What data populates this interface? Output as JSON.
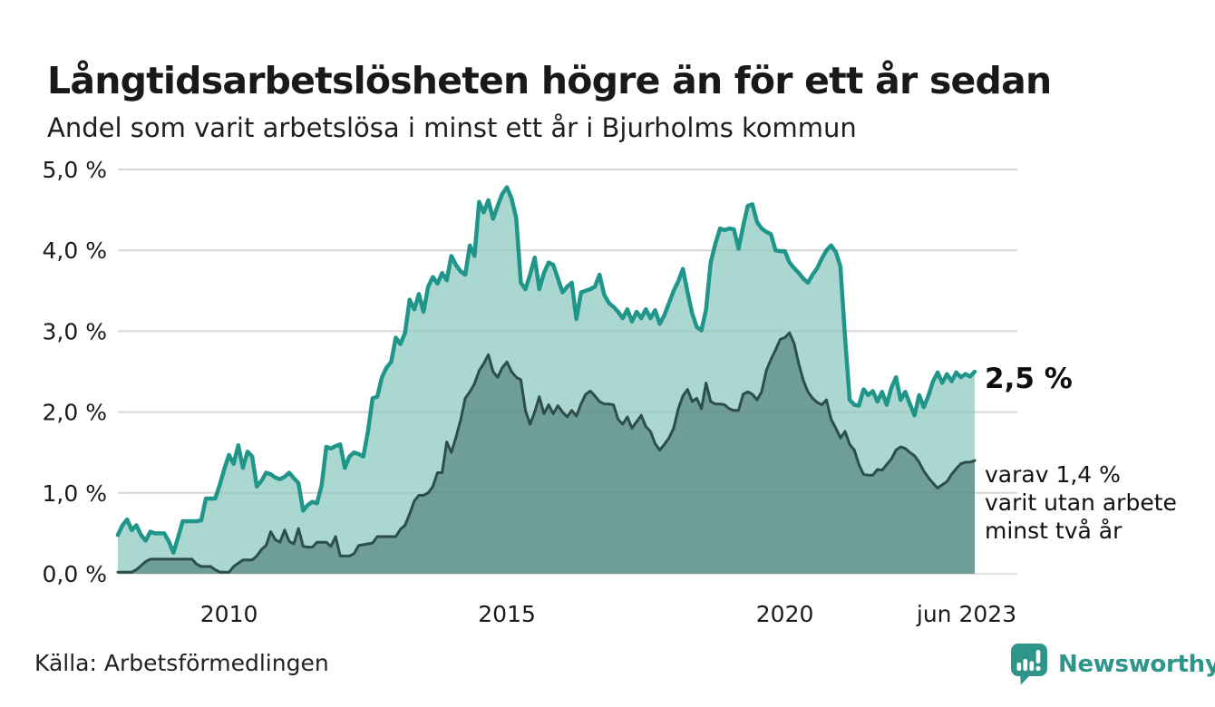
{
  "annotations": {
    "latest_value": "2,5 %",
    "secondary_line1": "varav 1,4 %",
    "secondary_line2": "varit utan arbete",
    "secondary_line3": "minst två år"
  },
  "footer": {
    "source": "Källa: Arbetsförmedlingen",
    "logo_text": "Newsworthy",
    "logo_icon": "bar-chart-speech-bubble-icon"
  },
  "colors": {
    "series1_stroke": "#20968a",
    "series1_fill": "#aad7d0",
    "series2_stroke": "#2d4e4a",
    "series2_fill": "#6f9d97",
    "gridline": "#e2e2e2",
    "logo_teal": "#2e958a",
    "text": "#1a1a1a"
  },
  "chart_data": {
    "type": "area",
    "title": "Långtidsarbetslösheten högre än för ett år sedan",
    "subtitle": "Andel som varit arbetslösa i minst ett år i Bjurholms kommun",
    "unit": "%",
    "frequency": "monthly",
    "x_start": "2008-01",
    "x_end": "2023-06",
    "grid": true,
    "x_axis": {
      "ticks": [
        {
          "label": "2010",
          "month_index": 24
        },
        {
          "label": "2015",
          "month_index": 84
        },
        {
          "label": "2020",
          "month_index": 144
        },
        {
          "label": "jun 2023",
          "month_index": 185
        }
      ]
    },
    "y_axis": {
      "min": 0,
      "max": 5,
      "ticks": [
        {
          "label": "0,0 %",
          "value": 0
        },
        {
          "label": "1,0 %",
          "value": 1
        },
        {
          "label": "2,0 %",
          "value": 2
        },
        {
          "label": "3,0 %",
          "value": 3
        },
        {
          "label": "4,0 %",
          "value": 4
        },
        {
          "label": "5,0 %",
          "value": 5
        }
      ]
    },
    "series": [
      {
        "name": "Andel arbetslösa minst ett år",
        "end_label": "2,5 %",
        "stroke": "#20968a",
        "fill": "#aad7d0",
        "stroke_width": 4.5,
        "values": [
          0.48,
          0.6,
          0.67,
          0.54,
          0.6,
          0.48,
          0.41,
          0.52,
          0.5,
          0.5,
          0.5,
          0.4,
          0.26,
          0.45,
          0.65,
          0.65,
          0.65,
          0.65,
          0.66,
          0.93,
          0.93,
          0.93,
          1.1,
          1.3,
          1.47,
          1.36,
          1.59,
          1.31,
          1.51,
          1.45,
          1.08,
          1.15,
          1.25,
          1.23,
          1.19,
          1.17,
          1.2,
          1.25,
          1.18,
          1.12,
          0.78,
          0.85,
          0.89,
          0.87,
          1.1,
          1.57,
          1.55,
          1.58,
          1.6,
          1.31,
          1.45,
          1.5,
          1.48,
          1.45,
          1.76,
          2.17,
          2.19,
          2.43,
          2.55,
          2.62,
          2.92,
          2.84,
          2.98,
          3.39,
          3.27,
          3.46,
          3.24,
          3.55,
          3.67,
          3.59,
          3.72,
          3.63,
          3.93,
          3.82,
          3.74,
          3.7,
          4.06,
          3.93,
          4.6,
          4.47,
          4.62,
          4.39,
          4.55,
          4.7,
          4.78,
          4.64,
          4.4,
          3.6,
          3.52,
          3.7,
          3.91,
          3.52,
          3.72,
          3.85,
          3.82,
          3.65,
          3.48,
          3.55,
          3.6,
          3.15,
          3.48,
          3.5,
          3.52,
          3.55,
          3.7,
          3.45,
          3.35,
          3.3,
          3.24,
          3.16,
          3.27,
          3.12,
          3.24,
          3.16,
          3.27,
          3.16,
          3.26,
          3.09,
          3.2,
          3.35,
          3.5,
          3.62,
          3.77,
          3.48,
          3.22,
          3.05,
          3.01,
          3.27,
          3.85,
          4.08,
          4.27,
          4.25,
          4.27,
          4.26,
          4.02,
          4.3,
          4.55,
          4.57,
          4.35,
          4.27,
          4.23,
          4.2,
          4.0,
          3.99,
          3.99,
          3.85,
          3.78,
          3.72,
          3.65,
          3.6,
          3.7,
          3.78,
          3.9,
          4.0,
          4.06,
          3.98,
          3.8,
          2.92,
          2.15,
          2.09,
          2.08,
          2.28,
          2.21,
          2.26,
          2.13,
          2.25,
          2.09,
          2.3,
          2.43,
          2.15,
          2.25,
          2.1,
          1.96,
          2.21,
          2.06,
          2.2,
          2.38,
          2.49,
          2.36,
          2.47,
          2.38,
          2.49,
          2.43,
          2.47,
          2.44,
          2.5
        ]
      },
      {
        "name": "varav utan arbete minst två år",
        "end_label": "varav 1,4 % varit utan arbete minst två år",
        "stroke": "#2d4e4a",
        "fill": "#6f9d97",
        "stroke_width": 3,
        "values": [
          0.02,
          0.02,
          0.02,
          0.02,
          0.05,
          0.1,
          0.15,
          0.18,
          0.18,
          0.18,
          0.18,
          0.18,
          0.18,
          0.18,
          0.18,
          0.18,
          0.18,
          0.12,
          0.09,
          0.09,
          0.09,
          0.05,
          0.02,
          0.02,
          0.02,
          0.09,
          0.13,
          0.17,
          0.17,
          0.17,
          0.22,
          0.3,
          0.35,
          0.52,
          0.42,
          0.39,
          0.54,
          0.4,
          0.37,
          0.56,
          0.34,
          0.33,
          0.33,
          0.39,
          0.39,
          0.39,
          0.34,
          0.46,
          0.22,
          0.22,
          0.22,
          0.25,
          0.35,
          0.36,
          0.37,
          0.38,
          0.46,
          0.46,
          0.46,
          0.46,
          0.46,
          0.55,
          0.6,
          0.74,
          0.9,
          0.97,
          0.97,
          1.0,
          1.08,
          1.25,
          1.25,
          1.63,
          1.5,
          1.69,
          1.9,
          2.17,
          2.25,
          2.35,
          2.51,
          2.6,
          2.71,
          2.5,
          2.43,
          2.55,
          2.62,
          2.5,
          2.43,
          2.4,
          2.02,
          1.85,
          2.0,
          2.19,
          1.98,
          2.09,
          1.98,
          2.08,
          2.0,
          1.94,
          2.02,
          1.95,
          2.1,
          2.22,
          2.26,
          2.2,
          2.13,
          2.1,
          2.1,
          2.09,
          1.91,
          1.85,
          1.94,
          1.8,
          1.88,
          1.96,
          1.82,
          1.76,
          1.61,
          1.53,
          1.6,
          1.68,
          1.8,
          2.04,
          2.2,
          2.28,
          2.13,
          2.17,
          2.04,
          2.36,
          2.13,
          2.1,
          2.1,
          2.09,
          2.04,
          2.02,
          2.02,
          2.22,
          2.25,
          2.22,
          2.15,
          2.25,
          2.51,
          2.65,
          2.77,
          2.9,
          2.92,
          2.98,
          2.85,
          2.6,
          2.39,
          2.25,
          2.17,
          2.12,
          2.09,
          2.15,
          1.91,
          1.8,
          1.68,
          1.76,
          1.6,
          1.53,
          1.35,
          1.23,
          1.22,
          1.22,
          1.29,
          1.28,
          1.35,
          1.42,
          1.53,
          1.57,
          1.55,
          1.5,
          1.46,
          1.38,
          1.27,
          1.19,
          1.12,
          1.06,
          1.1,
          1.14,
          1.23,
          1.3,
          1.36,
          1.38,
          1.38,
          1.4
        ]
      }
    ]
  }
}
